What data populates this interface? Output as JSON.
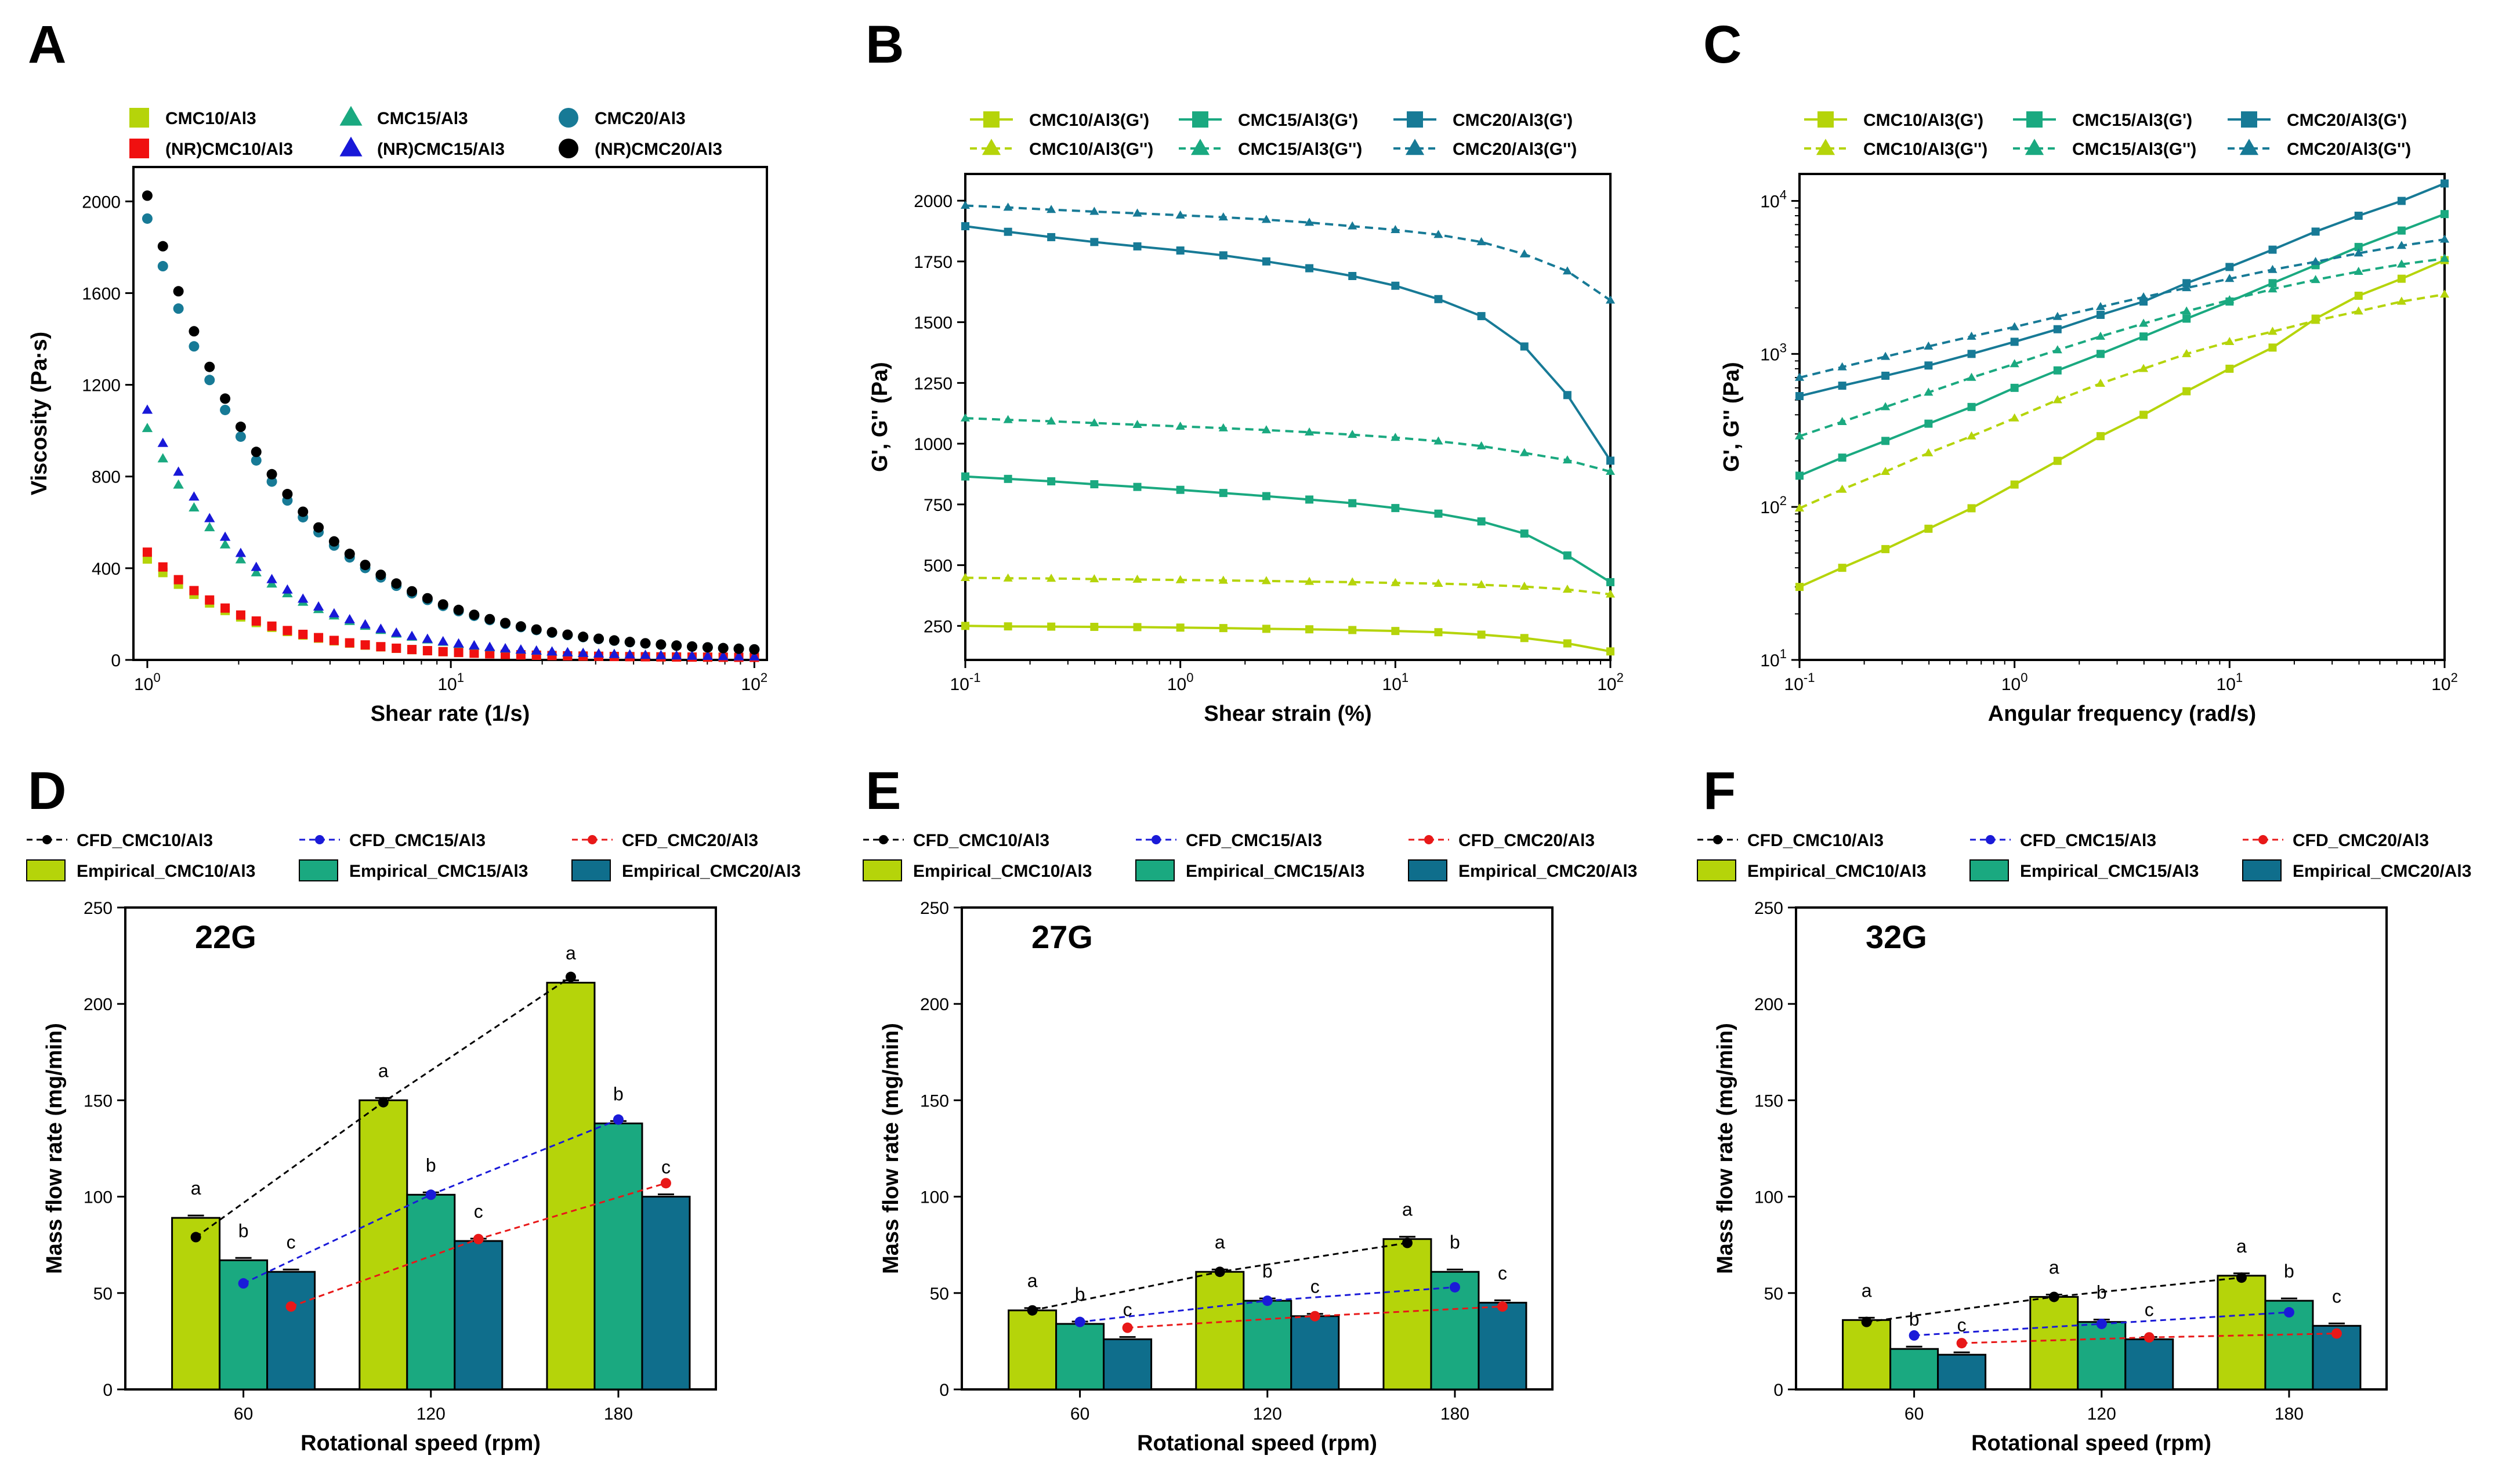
{
  "chart_data": [
    {
      "panel": "A",
      "type": "scatter",
      "xlabel": "Shear rate (1/s)",
      "ylabel": "Viscosity (Pa·s)",
      "xscale": "log",
      "xlim": [
        0.9,
        110
      ],
      "ylim": [
        0,
        2150
      ],
      "yticks": [
        0,
        400,
        800,
        1200,
        1600,
        2000
      ],
      "xticks": [
        {
          "v": 1,
          "base": "10",
          "exp": "0"
        },
        {
          "v": 10,
          "base": "10",
          "exp": "1"
        },
        {
          "v": 100,
          "base": "10",
          "exp": "2"
        }
      ],
      "legend_position": "top",
      "model": "eta(x) = eta0 * x^(-n), 40 log-spaced shear rates from 1 to 100 1/s",
      "series": [
        {
          "name": "CMC10/Al3",
          "marker": "square",
          "color": "#b5d40a",
          "eta0": 430,
          "n": 1.25
        },
        {
          "name": "CMC15/Al3",
          "marker": "triangle",
          "color": "#1aa980",
          "eta0": 1000,
          "n": 1.2
        },
        {
          "name": "CMC20/Al3",
          "marker": "circle",
          "color": "#177a96",
          "eta0": 1900,
          "n": 0.98
        },
        {
          "name": "(NR)CMC10/Al3",
          "marker": "square",
          "color": "#f01010",
          "eta0": 460,
          "n": 1.28
        },
        {
          "name": "(NR)CMC15/Al3",
          "marker": "triangle",
          "color": "#1818d8",
          "eta0": 1080,
          "n": 1.22
        },
        {
          "name": "(NR)CMC20/Al3",
          "marker": "circle",
          "color": "#000000",
          "eta0": 2000,
          "n": 0.99
        }
      ]
    },
    {
      "panel": "B",
      "type": "line",
      "xlabel": "Shear strain (%)",
      "ylabel": "G', G'' (Pa)",
      "xscale": "log",
      "xlim": [
        0.1,
        100
      ],
      "ylim": [
        110,
        2110
      ],
      "yticks": [
        250,
        500,
        750,
        1000,
        1250,
        1500,
        1750,
        2000
      ],
      "xticks": [
        {
          "v": 0.1,
          "base": "10",
          "exp": "-1"
        },
        {
          "v": 1,
          "base": "10",
          "exp": "0"
        },
        {
          "v": 10,
          "base": "10",
          "exp": "1"
        },
        {
          "v": 100,
          "base": "10",
          "exp": "2"
        }
      ],
      "legend_position": "top",
      "x": [
        0.1,
        0.158,
        0.251,
        0.398,
        0.631,
        1.0,
        1.585,
        2.512,
        3.981,
        6.31,
        10.0,
        15.85,
        25.12,
        39.81,
        63.1,
        100
      ],
      "series": [
        {
          "name": "CMC10/Al3(G')",
          "marker": "square",
          "dash": false,
          "color": "#b5d40a",
          "values": [
            250,
            248,
            247,
            246,
            245,
            243,
            241,
            238,
            236,
            233,
            229,
            224,
            214,
            200,
            178,
            145
          ]
        },
        {
          "name": "CMC15/Al3(G')",
          "marker": "square",
          "dash": false,
          "color": "#1aa980",
          "values": [
            865,
            855,
            845,
            833,
            822,
            810,
            797,
            784,
            770,
            755,
            735,
            712,
            680,
            630,
            540,
            430
          ]
        },
        {
          "name": "CMC20/Al3(G')",
          "marker": "square",
          "dash": false,
          "color": "#177a96",
          "values": [
            1895,
            1872,
            1850,
            1830,
            1812,
            1795,
            1775,
            1750,
            1722,
            1690,
            1650,
            1595,
            1525,
            1400,
            1200,
            930
          ]
        },
        {
          "name": "CMC10/Al3(G'')",
          "marker": "triangle",
          "dash": true,
          "color": "#b5d40a",
          "values": [
            448,
            446,
            445,
            443,
            441,
            439,
            437,
            435,
            432,
            430,
            427,
            424,
            419,
            412,
            400,
            380
          ]
        },
        {
          "name": "CMC15/Al3(G'')",
          "marker": "triangle",
          "dash": true,
          "color": "#1aa980",
          "values": [
            1105,
            1098,
            1092,
            1085,
            1078,
            1071,
            1064,
            1056,
            1047,
            1037,
            1025,
            1010,
            990,
            962,
            932,
            885
          ]
        },
        {
          "name": "CMC20/Al3(G'')",
          "marker": "triangle",
          "dash": true,
          "color": "#177a96",
          "values": [
            1980,
            1972,
            1963,
            1955,
            1948,
            1940,
            1932,
            1922,
            1910,
            1895,
            1880,
            1860,
            1830,
            1780,
            1710,
            1590
          ]
        }
      ]
    },
    {
      "panel": "C",
      "type": "line",
      "xlabel": "Angular frequency (rad/s)",
      "ylabel": "G', G'' (Pa)",
      "xscale": "log",
      "yscale": "log",
      "xlim": [
        0.1,
        100
      ],
      "ylim": [
        10,
        15000
      ],
      "yticks": [
        {
          "v": 10,
          "base": "10",
          "exp": "1"
        },
        {
          "v": 100,
          "base": "10",
          "exp": "2"
        },
        {
          "v": 1000,
          "base": "10",
          "exp": "3"
        },
        {
          "v": 10000,
          "base": "10",
          "exp": "4"
        }
      ],
      "xticks": [
        {
          "v": 0.1,
          "base": "10",
          "exp": "-1"
        },
        {
          "v": 1,
          "base": "10",
          "exp": "0"
        },
        {
          "v": 10,
          "base": "10",
          "exp": "1"
        },
        {
          "v": 100,
          "base": "10",
          "exp": "2"
        }
      ],
      "legend_position": "top",
      "x": [
        0.1,
        0.158,
        0.251,
        0.398,
        0.631,
        1.0,
        1.585,
        2.512,
        3.981,
        6.31,
        10.0,
        15.85,
        25.12,
        39.81,
        63.1,
        100
      ],
      "series": [
        {
          "name": "CMC10/Al3(G')",
          "marker": "square",
          "dash": false,
          "color": "#b5d40a",
          "values": [
            30,
            40,
            53,
            72,
            98,
            140,
            200,
            290,
            400,
            570,
            800,
            1100,
            1700,
            2400,
            3100,
            4100
          ]
        },
        {
          "name": "CMC15/Al3(G')",
          "marker": "square",
          "dash": false,
          "color": "#1aa980",
          "values": [
            160,
            210,
            270,
            350,
            450,
            600,
            780,
            1000,
            1300,
            1700,
            2200,
            2900,
            3800,
            5000,
            6400,
            8200
          ]
        },
        {
          "name": "CMC20/Al3(G')",
          "marker": "square",
          "dash": false,
          "color": "#177a96",
          "values": [
            530,
            620,
            720,
            840,
            1000,
            1200,
            1450,
            1800,
            2200,
            2900,
            3700,
            4800,
            6300,
            8000,
            10000,
            13000
          ]
        },
        {
          "name": "CMC10/Al3(G'')",
          "marker": "triangle",
          "dash": true,
          "color": "#b5d40a",
          "values": [
            98,
            130,
            170,
            225,
            290,
            380,
            500,
            640,
            800,
            1000,
            1200,
            1400,
            1650,
            1900,
            2200,
            2450
          ]
        },
        {
          "name": "CMC15/Al3(G'')",
          "marker": "triangle",
          "dash": true,
          "color": "#1aa980",
          "values": [
            290,
            360,
            450,
            560,
            700,
            860,
            1060,
            1300,
            1580,
            1900,
            2250,
            2650,
            3050,
            3450,
            3850,
            4200
          ]
        },
        {
          "name": "CMC20/Al3(G'')",
          "marker": "triangle",
          "dash": true,
          "color": "#177a96",
          "values": [
            700,
            820,
            960,
            1120,
            1300,
            1500,
            1750,
            2030,
            2350,
            2700,
            3100,
            3550,
            4000,
            4550,
            5100,
            5600
          ]
        }
      ]
    },
    {
      "panel": "D",
      "type": "bar",
      "needle": "22G",
      "xlabel": "Rotational speed (rpm)",
      "ylabel": "Mass flow rate (mg/min)",
      "ylim": [
        0,
        250
      ],
      "yticks": [
        0,
        50,
        100,
        150,
        200,
        250
      ],
      "categories": [
        "60",
        "120",
        "180"
      ],
      "legend_position": "top",
      "bars": [
        {
          "name": "Empirical_CMC10/Al3",
          "color": "#b5d40a",
          "values": [
            89,
            150,
            211
          ],
          "letters": [
            "a",
            "a",
            "a"
          ]
        },
        {
          "name": "Empirical_CMC15/Al3",
          "color": "#1aa980",
          "values": [
            67,
            101,
            138
          ],
          "letters": [
            "b",
            "b",
            "b"
          ]
        },
        {
          "name": "Empirical_CMC20/Al3",
          "color": "#0f6e8c",
          "values": [
            61,
            77,
            100
          ],
          "letters": [
            "c",
            "c",
            "c"
          ]
        }
      ],
      "lines": [
        {
          "name": "CFD_CMC10/Al3",
          "color": "#000000",
          "values": [
            79,
            149,
            214
          ]
        },
        {
          "name": "CFD_CMC15/Al3",
          "color": "#1a1ad8",
          "values": [
            55,
            101,
            140
          ]
        },
        {
          "name": "CFD_CMC20/Al3",
          "color": "#e81818",
          "values": [
            43,
            78,
            107
          ]
        }
      ]
    },
    {
      "panel": "E",
      "type": "bar",
      "needle": "27G",
      "xlabel": "Rotational speed (rpm)",
      "ylabel": "Mass flow rate (mg/min)",
      "ylim": [
        0,
        250
      ],
      "yticks": [
        0,
        50,
        100,
        150,
        200,
        250
      ],
      "categories": [
        "60",
        "120",
        "180"
      ],
      "legend_position": "top",
      "bars": [
        {
          "name": "Empirical_CMC10/Al3",
          "color": "#b5d40a",
          "values": [
            41,
            61,
            78
          ],
          "letters": [
            "a",
            "a",
            "a"
          ]
        },
        {
          "name": "Empirical_CMC15/Al3",
          "color": "#1aa980",
          "values": [
            34,
            46,
            61
          ],
          "letters": [
            "b",
            "b",
            "b"
          ]
        },
        {
          "name": "Empirical_CMC20/Al3",
          "color": "#0f6e8c",
          "values": [
            26,
            38,
            45
          ],
          "letters": [
            "c",
            "c",
            "c"
          ]
        }
      ],
      "lines": [
        {
          "name": "CFD_CMC10/Al3",
          "color": "#000000",
          "values": [
            41,
            61,
            76
          ]
        },
        {
          "name": "CFD_CMC15/Al3",
          "color": "#1a1ad8",
          "values": [
            35,
            46,
            53
          ]
        },
        {
          "name": "CFD_CMC20/Al3",
          "color": "#e81818",
          "values": [
            32,
            38,
            43
          ]
        }
      ]
    },
    {
      "panel": "F",
      "type": "bar",
      "needle": "32G",
      "xlabel": "Rotational speed (rpm)",
      "ylabel": "Mass flow rate (mg/min)",
      "ylim": [
        0,
        250
      ],
      "yticks": [
        0,
        50,
        100,
        150,
        200,
        250
      ],
      "categories": [
        "60",
        "120",
        "180"
      ],
      "legend_position": "top",
      "bars": [
        {
          "name": "Empirical_CMC10/Al3",
          "color": "#b5d40a",
          "values": [
            36,
            48,
            59
          ],
          "letters": [
            "a",
            "a",
            "a"
          ]
        },
        {
          "name": "Empirical_CMC15/Al3",
          "color": "#1aa980",
          "values": [
            21,
            35,
            46
          ],
          "letters": [
            "b",
            "b",
            "b"
          ]
        },
        {
          "name": "Empirical_CMC20/Al3",
          "color": "#0f6e8c",
          "values": [
            18,
            26,
            33
          ],
          "letters": [
            "c",
            "c",
            "c"
          ]
        }
      ],
      "lines": [
        {
          "name": "CFD_CMC10/Al3",
          "color": "#000000",
          "values": [
            35,
            48,
            58
          ]
        },
        {
          "name": "CFD_CMC15/Al3",
          "color": "#1a1ad8",
          "values": [
            28,
            34,
            40
          ]
        },
        {
          "name": "CFD_CMC20/Al3",
          "color": "#e81818",
          "values": [
            24,
            27,
            29
          ]
        }
      ]
    }
  ]
}
